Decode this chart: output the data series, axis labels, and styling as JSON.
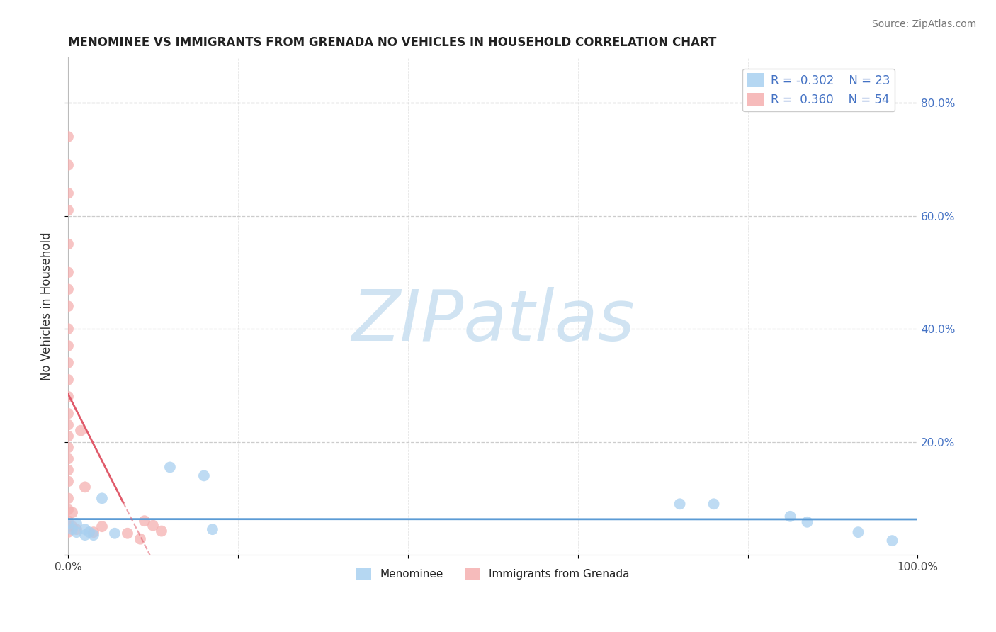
{
  "title": "MENOMINEE VS IMMIGRANTS FROM GRENADA NO VEHICLES IN HOUSEHOLD CORRELATION CHART",
  "source": "Source: ZipAtlas.com",
  "ylabel": "No Vehicles in Household",
  "xlim": [
    0.0,
    1.0
  ],
  "ylim": [
    0.0,
    0.88
  ],
  "xticks": [
    0.0,
    0.2,
    0.4,
    0.6,
    0.8,
    1.0
  ],
  "xtick_labels_show": [
    "0.0%",
    "",
    "",
    "",
    "",
    "100.0%"
  ],
  "yticks_right": [
    0.2,
    0.4,
    0.6,
    0.8
  ],
  "ytick_labels_right": [
    "20.0%",
    "40.0%",
    "60.0%",
    "80.0%"
  ],
  "legend_blue_r": "-0.302",
  "legend_blue_n": "23",
  "legend_pink_r": "0.360",
  "legend_pink_n": "54",
  "blue_scatter_x": [
    0.0,
    0.005,
    0.01,
    0.01,
    0.02,
    0.02,
    0.025,
    0.03,
    0.04,
    0.055,
    0.12,
    0.16,
    0.17,
    0.72,
    0.76,
    0.85,
    0.87,
    0.93,
    0.97
  ],
  "blue_scatter_y": [
    0.055,
    0.045,
    0.04,
    0.055,
    0.035,
    0.045,
    0.04,
    0.035,
    0.1,
    0.038,
    0.155,
    0.14,
    0.045,
    0.09,
    0.09,
    0.068,
    0.058,
    0.04,
    0.025
  ],
  "pink_scatter_x": [
    0.0,
    0.0,
    0.0,
    0.0,
    0.0,
    0.0,
    0.0,
    0.0,
    0.0,
    0.0,
    0.0,
    0.0,
    0.0,
    0.0,
    0.0,
    0.0,
    0.0,
    0.0,
    0.0,
    0.0,
    0.0,
    0.0,
    0.0,
    0.0,
    0.0,
    0.005,
    0.005,
    0.01,
    0.015,
    0.02,
    0.03,
    0.04,
    0.07,
    0.085,
    0.09,
    0.1,
    0.11
  ],
  "pink_scatter_y": [
    0.74,
    0.69,
    0.64,
    0.61,
    0.55,
    0.5,
    0.47,
    0.44,
    0.4,
    0.37,
    0.34,
    0.31,
    0.28,
    0.25,
    0.23,
    0.21,
    0.19,
    0.17,
    0.15,
    0.13,
    0.1,
    0.08,
    0.06,
    0.05,
    0.04,
    0.05,
    0.075,
    0.045,
    0.22,
    0.12,
    0.04,
    0.05,
    0.038,
    0.028,
    0.06,
    0.052,
    0.042
  ],
  "blue_color": "#a8d0f0",
  "pink_color": "#f5b0b0",
  "blue_line_color": "#5b9bd5",
  "pink_line_color": "#e05a6a",
  "pink_line_solid_xlim": [
    0.0,
    0.065
  ],
  "pink_line_dash_xlim": [
    0.065,
    0.18
  ],
  "watermark_text": "ZIPatlas",
  "watermark_color": "#c8dff0",
  "background_color": "#ffffff",
  "grid_color": "#cccccc"
}
